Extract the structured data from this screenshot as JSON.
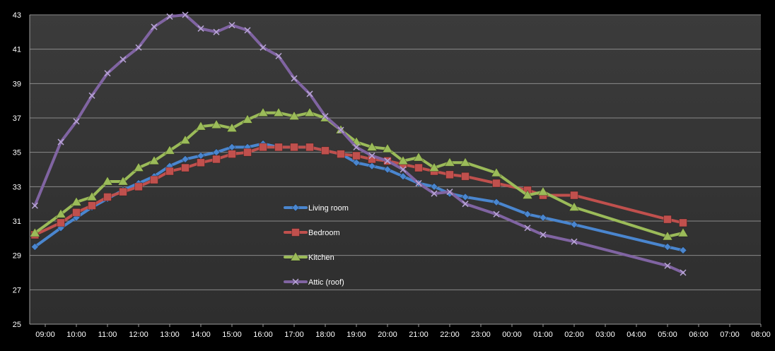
{
  "chart_data": {
    "type": "line",
    "xlabel": "",
    "ylabel": "",
    "ylim": [
      25,
      43
    ],
    "yticks": [
      25,
      27,
      29,
      31,
      33,
      35,
      37,
      39,
      41,
      43
    ],
    "xlim": [
      "08:30",
      "08:00 (+1 day)"
    ],
    "xtick_labels": [
      "09:00",
      "10:00",
      "11:00",
      "12:00",
      "13:00",
      "14:00",
      "15:00",
      "16:00",
      "17:00",
      "18:00",
      "19:00",
      "20:00",
      "21:00",
      "22:00",
      "23:00",
      "00:00",
      "01:00",
      "02:00",
      "03:00",
      "04:00",
      "05:00",
      "06:00",
      "07:00",
      "08:00"
    ],
    "grid": true,
    "legend_position": "center-left",
    "series": [
      {
        "name": "Living room",
        "color": "#4a86cf",
        "marker": "diamond",
        "points": [
          [
            "08:40",
            29.5
          ],
          [
            "09:30",
            30.6
          ],
          [
            "10:00",
            31.2
          ],
          [
            "10:30",
            31.8
          ],
          [
            "11:00",
            32.3
          ],
          [
            "11:30",
            32.8
          ],
          [
            "12:00",
            33.2
          ],
          [
            "12:30",
            33.6
          ],
          [
            "13:00",
            34.2
          ],
          [
            "13:30",
            34.6
          ],
          [
            "14:00",
            34.8
          ],
          [
            "14:30",
            35.0
          ],
          [
            "15:00",
            35.3
          ],
          [
            "15:30",
            35.3
          ],
          [
            "16:00",
            35.5
          ],
          [
            "16:30",
            35.3
          ],
          [
            "17:00",
            35.3
          ],
          [
            "17:30",
            35.3
          ],
          [
            "18:00",
            35.1
          ],
          [
            "18:30",
            34.9
          ],
          [
            "19:00",
            34.4
          ],
          [
            "19:30",
            34.2
          ],
          [
            "20:00",
            34.0
          ],
          [
            "20:30",
            33.6
          ],
          [
            "21:00",
            33.2
          ],
          [
            "21:30",
            33.0
          ],
          [
            "22:00",
            32.6
          ],
          [
            "22:30",
            32.4
          ],
          [
            "23:30",
            32.1
          ],
          [
            "00:30",
            31.4
          ],
          [
            "01:00",
            31.2
          ],
          [
            "02:00",
            30.8
          ],
          [
            "05:00",
            29.5
          ],
          [
            "05:30",
            29.3
          ]
        ]
      },
      {
        "name": "Bedroom",
        "color": "#c0504d",
        "marker": "square",
        "points": [
          [
            "08:40",
            30.2
          ],
          [
            "09:30",
            30.9
          ],
          [
            "10:00",
            31.5
          ],
          [
            "10:30",
            31.9
          ],
          [
            "11:00",
            32.4
          ],
          [
            "11:30",
            32.7
          ],
          [
            "12:00",
            33.0
          ],
          [
            "12:30",
            33.4
          ],
          [
            "13:00",
            33.9
          ],
          [
            "13:30",
            34.1
          ],
          [
            "14:00",
            34.4
          ],
          [
            "14:30",
            34.6
          ],
          [
            "15:00",
            34.9
          ],
          [
            "15:30",
            35.0
          ],
          [
            "16:00",
            35.3
          ],
          [
            "16:30",
            35.3
          ],
          [
            "17:00",
            35.3
          ],
          [
            "17:30",
            35.3
          ],
          [
            "18:00",
            35.1
          ],
          [
            "18:30",
            34.9
          ],
          [
            "19:00",
            34.8
          ],
          [
            "19:30",
            34.6
          ],
          [
            "20:00",
            34.5
          ],
          [
            "20:30",
            34.3
          ],
          [
            "21:00",
            34.1
          ],
          [
            "21:30",
            33.9
          ],
          [
            "22:00",
            33.7
          ],
          [
            "22:30",
            33.6
          ],
          [
            "23:30",
            33.2
          ],
          [
            "00:30",
            32.8
          ],
          [
            "01:00",
            32.5
          ],
          [
            "02:00",
            32.5
          ],
          [
            "05:00",
            31.1
          ],
          [
            "05:30",
            30.9
          ]
        ]
      },
      {
        "name": "Kitchen",
        "color": "#9bbb59",
        "marker": "triangle",
        "points": [
          [
            "08:40",
            30.3
          ],
          [
            "09:30",
            31.4
          ],
          [
            "10:00",
            32.1
          ],
          [
            "10:30",
            32.4
          ],
          [
            "11:00",
            33.3
          ],
          [
            "11:30",
            33.3
          ],
          [
            "12:00",
            34.1
          ],
          [
            "12:30",
            34.5
          ],
          [
            "13:00",
            35.1
          ],
          [
            "13:30",
            35.7
          ],
          [
            "14:00",
            36.5
          ],
          [
            "14:30",
            36.6
          ],
          [
            "15:00",
            36.4
          ],
          [
            "15:30",
            36.9
          ],
          [
            "16:00",
            37.3
          ],
          [
            "16:30",
            37.3
          ],
          [
            "17:00",
            37.1
          ],
          [
            "17:30",
            37.3
          ],
          [
            "18:00",
            37.0
          ],
          [
            "18:30",
            36.3
          ],
          [
            "19:00",
            35.6
          ],
          [
            "19:30",
            35.3
          ],
          [
            "20:00",
            35.2
          ],
          [
            "20:30",
            34.5
          ],
          [
            "21:00",
            34.7
          ],
          [
            "21:30",
            34.1
          ],
          [
            "22:00",
            34.4
          ],
          [
            "22:30",
            34.4
          ],
          [
            "23:30",
            33.8
          ],
          [
            "00:30",
            32.5
          ],
          [
            "01:00",
            32.7
          ],
          [
            "02:00",
            31.8
          ],
          [
            "05:00",
            30.1
          ],
          [
            "05:30",
            30.3
          ]
        ]
      },
      {
        "name": "Attic (roof)",
        "color": "#8064a2",
        "marker": "x",
        "points": [
          [
            "08:40",
            31.9
          ],
          [
            "09:30",
            35.6
          ],
          [
            "10:00",
            36.8
          ],
          [
            "10:30",
            38.3
          ],
          [
            "11:00",
            39.6
          ],
          [
            "11:30",
            40.4
          ],
          [
            "12:00",
            41.1
          ],
          [
            "12:30",
            42.3
          ],
          [
            "13:00",
            42.9
          ],
          [
            "13:30",
            43.0
          ],
          [
            "14:00",
            42.2
          ],
          [
            "14:30",
            42.0
          ],
          [
            "15:00",
            42.4
          ],
          [
            "15:30",
            42.1
          ],
          [
            "16:00",
            41.1
          ],
          [
            "16:30",
            40.6
          ],
          [
            "17:00",
            39.3
          ],
          [
            "17:30",
            38.4
          ],
          [
            "18:00",
            37.1
          ],
          [
            "18:30",
            36.3
          ],
          [
            "19:00",
            35.3
          ],
          [
            "19:30",
            34.8
          ],
          [
            "20:00",
            34.5
          ],
          [
            "20:30",
            34.0
          ],
          [
            "21:00",
            33.2
          ],
          [
            "21:30",
            32.6
          ],
          [
            "22:00",
            32.7
          ],
          [
            "22:30",
            32.0
          ],
          [
            "23:30",
            31.4
          ],
          [
            "00:30",
            30.6
          ],
          [
            "01:00",
            30.2
          ],
          [
            "02:00",
            29.8
          ],
          [
            "05:00",
            28.4
          ],
          [
            "05:30",
            28.0
          ]
        ]
      }
    ]
  }
}
